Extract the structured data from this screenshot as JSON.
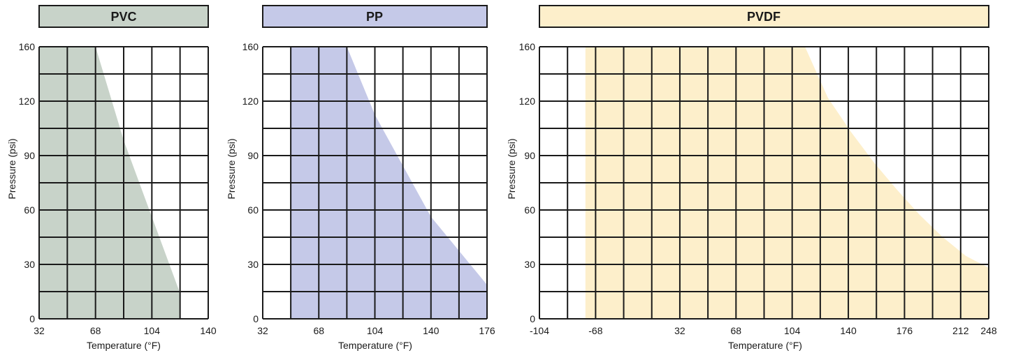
{
  "chart_data": [
    {
      "type": "area",
      "title": "PVC",
      "xlabel": "Temperature (°F)",
      "ylabel": "Pressure (psi)",
      "x_ticks": [
        32,
        68,
        104,
        140
      ],
      "y_ticks": [
        0,
        30,
        60,
        90,
        120,
        160
      ],
      "xlim": [
        32,
        140
      ],
      "ylim": [
        0,
        160
      ],
      "grid": true,
      "colors": {
        "fill": "#c8d3c9",
        "title_bg": "#c8d3c9"
      },
      "series": [
        {
          "x": [
            32,
            68,
            86,
            104,
            122,
            122
          ],
          "y": [
            160,
            160,
            105,
            60,
            15,
            0
          ]
        }
      ]
    },
    {
      "type": "area",
      "title": "PP",
      "xlabel": "Temperature (°F)",
      "ylabel": "Pressure (psi)",
      "x_ticks": [
        32,
        68,
        104,
        140,
        176
      ],
      "y_ticks": [
        0,
        30,
        60,
        90,
        120,
        160
      ],
      "xlim": [
        32,
        176
      ],
      "ylim": [
        0,
        160
      ],
      "grid": true,
      "colors": {
        "fill": "#c5c9e8",
        "title_bg": "#c5c9e8"
      },
      "series": [
        {
          "x": [
            50,
            86,
            104,
            122,
            140,
            158,
            176,
            176,
            50
          ],
          "y": [
            160,
            160,
            120,
            90,
            60,
            40,
            20,
            0,
            0
          ]
        }
      ]
    },
    {
      "type": "area",
      "title": "PVDF",
      "xlabel": "Temperature (°F)",
      "ylabel": "Pressure (psi)",
      "x_ticks": [
        -104,
        -68,
        32,
        68,
        104,
        140,
        176,
        212,
        248
      ],
      "y_ticks": [
        0,
        30,
        60,
        90,
        120,
        160
      ],
      "xlim": [
        -104,
        248
      ],
      "ylim": [
        0,
        160
      ],
      "grid": true,
      "colors": {
        "fill": "#fdefcb",
        "title_bg": "#fdefcb"
      },
      "series": [
        {
          "x": [
            -68,
            104,
            122,
            140,
            158,
            176,
            194,
            212,
            230,
            248,
            248,
            -68
          ],
          "y": [
            160,
            160,
            130,
            110,
            92,
            76,
            61,
            48,
            37,
            30,
            0,
            0
          ]
        }
      ]
    }
  ]
}
